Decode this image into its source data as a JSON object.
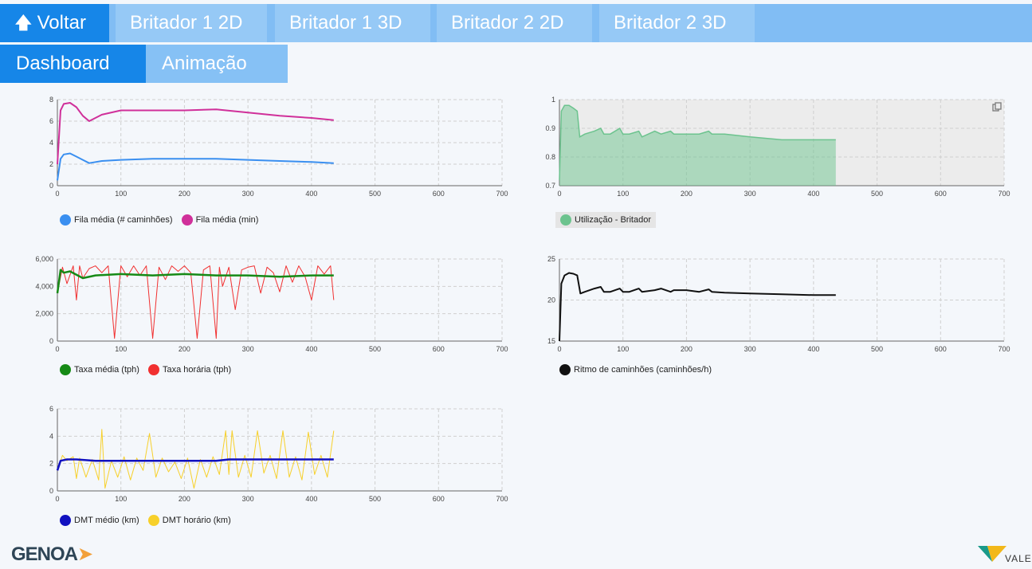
{
  "nav": {
    "back_label": "Voltar",
    "tabs": [
      "Britador 1 2D",
      "Britador 1 3D",
      "Britador 2 2D",
      "Britador 2 3D"
    ]
  },
  "subnav": {
    "dashboard": "Dashboard",
    "animation": "Animação"
  },
  "colors": {
    "nav_bg": "#81bdf4",
    "active": "#1686e8",
    "fila_count": "#3a8ff0",
    "fila_min": "#d0309a",
    "util": "#6cc38e",
    "taxa_media": "#168a16",
    "taxa_horaria": "#f13030",
    "ritmo": "#111111",
    "dmt_medio": "#1111c0",
    "dmt_horario": "#f7d02a"
  },
  "legends": {
    "fila_count": "Fila média (# caminhões)",
    "fila_min": "Fila média (min)",
    "util": "Utilização - Britador",
    "taxa_media": "Taxa média (tph)",
    "taxa_horaria": "Taxa horária (tph)",
    "ritmo": "Ritmo de caminhões (caminhões/h)",
    "dmt_medio": "DMT médio (km)",
    "dmt_horario": "DMT horário (km)"
  },
  "icons": {
    "copy": "copy-icon",
    "back": "up-arrow-icon",
    "genoa": "genoa-logo",
    "vale": "vale-logo"
  },
  "logos": {
    "genoa": "GENOA",
    "vale": "VALE"
  },
  "chart_data": [
    {
      "type": "line",
      "xlim": [
        0,
        700
      ],
      "ylim": [
        0,
        8
      ],
      "xticks": [
        "0",
        "100",
        "200",
        "300",
        "400",
        "500",
        "600",
        "700"
      ],
      "yticks": [
        "0",
        "2",
        "4",
        "6",
        "8"
      ],
      "series": [
        {
          "name": "Fila média (# caminhões)",
          "x": [
            0,
            5,
            10,
            20,
            30,
            40,
            50,
            70,
            100,
            150,
            200,
            250,
            300,
            350,
            400,
            435
          ],
          "y": [
            0.5,
            2.5,
            2.9,
            3.0,
            2.7,
            2.4,
            2.1,
            2.3,
            2.4,
            2.5,
            2.5,
            2.5,
            2.4,
            2.3,
            2.2,
            2.1
          ]
        },
        {
          "name": "Fila média (min)",
          "x": [
            0,
            5,
            10,
            20,
            30,
            40,
            50,
            70,
            100,
            150,
            200,
            250,
            300,
            350,
            400,
            435
          ],
          "y": [
            2.0,
            7.0,
            7.6,
            7.7,
            7.3,
            6.5,
            6.0,
            6.6,
            7.0,
            7.0,
            7.0,
            7.1,
            6.8,
            6.5,
            6.3,
            6.1
          ]
        }
      ]
    },
    {
      "type": "area",
      "xlim": [
        0,
        700
      ],
      "ylim": [
        0.7,
        1.0
      ],
      "xticks": [
        "0",
        "100",
        "200",
        "300",
        "400",
        "500",
        "600",
        "700"
      ],
      "yticks": [
        "0.7",
        "0.8",
        "0.9",
        "1"
      ],
      "series": [
        {
          "name": "Utilização - Britador",
          "x": [
            0,
            3,
            8,
            15,
            22,
            28,
            32,
            40,
            55,
            65,
            70,
            80,
            95,
            100,
            110,
            125,
            130,
            140,
            150,
            160,
            175,
            180,
            200,
            220,
            235,
            240,
            260,
            300,
            350,
            400,
            435
          ],
          "y": [
            0.72,
            0.96,
            0.98,
            0.98,
            0.97,
            0.96,
            0.87,
            0.88,
            0.89,
            0.9,
            0.88,
            0.88,
            0.9,
            0.88,
            0.88,
            0.89,
            0.87,
            0.88,
            0.89,
            0.88,
            0.89,
            0.88,
            0.88,
            0.88,
            0.89,
            0.88,
            0.88,
            0.87,
            0.86,
            0.86,
            0.86
          ]
        }
      ]
    },
    {
      "type": "line",
      "xlim": [
        0,
        700
      ],
      "ylim": [
        0,
        6000
      ],
      "xticks": [
        "0",
        "100",
        "200",
        "300",
        "400",
        "500",
        "600",
        "700"
      ],
      "yticks": [
        "0",
        "2,000",
        "4,000",
        "6,000"
      ],
      "series": [
        {
          "name": "Taxa média (tph)",
          "x": [
            0,
            5,
            10,
            20,
            40,
            60,
            100,
            150,
            200,
            250,
            300,
            350,
            400,
            435
          ],
          "y": [
            3500,
            5200,
            5000,
            5100,
            4600,
            4800,
            4900,
            4800,
            4900,
            4800,
            4800,
            4700,
            4800,
            4800
          ]
        },
        {
          "name": "Taxa horária (tph)",
          "x": [
            0,
            8,
            15,
            25,
            30,
            35,
            40,
            50,
            60,
            70,
            80,
            90,
            100,
            110,
            120,
            130,
            140,
            150,
            160,
            170,
            180,
            190,
            200,
            210,
            220,
            230,
            240,
            250,
            255,
            260,
            270,
            280,
            290,
            300,
            310,
            320,
            330,
            340,
            350,
            360,
            370,
            380,
            390,
            400,
            410,
            420,
            430,
            435
          ],
          "y": [
            3500,
            5400,
            4200,
            5500,
            3000,
            5500,
            4600,
            5300,
            5500,
            5000,
            5500,
            200,
            5500,
            4700,
            5500,
            4800,
            5500,
            200,
            5400,
            4500,
            5500,
            5100,
            5500,
            5000,
            200,
            5200,
            5500,
            200,
            5400,
            4000,
            5400,
            2300,
            5200,
            5400,
            5500,
            3500,
            5400,
            5000,
            3600,
            5500,
            4300,
            5500,
            4700,
            3000,
            5500,
            4900,
            5500,
            3000
          ]
        }
      ]
    },
    {
      "type": "line",
      "xlim": [
        0,
        700
      ],
      "ylim": [
        15,
        25
      ],
      "xticks": [
        "0",
        "100",
        "200",
        "300",
        "400",
        "500",
        "600",
        "700"
      ],
      "yticks": [
        "15",
        "20",
        "25"
      ],
      "series": [
        {
          "name": "Ritmo de caminhões (caminhões/h)",
          "x": [
            0,
            3,
            8,
            15,
            22,
            28,
            33,
            40,
            55,
            65,
            70,
            80,
            95,
            100,
            110,
            125,
            130,
            150,
            160,
            175,
            180,
            200,
            220,
            235,
            240,
            260,
            300,
            350,
            400,
            435
          ],
          "y": [
            15,
            22,
            23,
            23.3,
            23.2,
            23,
            20.8,
            21,
            21.4,
            21.6,
            21,
            21,
            21.4,
            21,
            21,
            21.4,
            21,
            21.2,
            21.4,
            21,
            21.2,
            21.2,
            21,
            21.3,
            21,
            20.9,
            20.8,
            20.7,
            20.6,
            20.6
          ]
        }
      ]
    },
    {
      "type": "line",
      "xlim": [
        0,
        700
      ],
      "ylim": [
        0,
        6
      ],
      "xticks": [
        "0",
        "100",
        "200",
        "300",
        "400",
        "500",
        "600",
        "700"
      ],
      "yticks": [
        "0",
        "2",
        "4",
        "6"
      ],
      "series": [
        {
          "name": "DMT médio (km)",
          "x": [
            0,
            5,
            15,
            30,
            60,
            100,
            150,
            200,
            250,
            270,
            280,
            300,
            350,
            400,
            435
          ],
          "y": [
            1.5,
            2.2,
            2.3,
            2.3,
            2.2,
            2.2,
            2.2,
            2.2,
            2.2,
            2.3,
            2.3,
            2.3,
            2.3,
            2.3,
            2.3
          ]
        },
        {
          "name": "DMT horário (km)",
          "x": [
            0,
            8,
            15,
            25,
            30,
            35,
            45,
            55,
            65,
            70,
            75,
            85,
            95,
            105,
            115,
            125,
            135,
            145,
            155,
            165,
            175,
            185,
            195,
            205,
            215,
            225,
            235,
            245,
            255,
            265,
            270,
            275,
            285,
            295,
            305,
            315,
            325,
            335,
            345,
            355,
            365,
            375,
            385,
            395,
            405,
            415,
            425,
            435
          ],
          "y": [
            1.5,
            2.6,
            2.2,
            2.5,
            0.9,
            2.4,
            1.0,
            2.3,
            0.8,
            4.5,
            0.2,
            2.2,
            1.0,
            2.5,
            0.8,
            2.4,
            1.5,
            4.2,
            1.0,
            2.4,
            1.4,
            2.1,
            0.9,
            2.4,
            0.2,
            2.3,
            1.0,
            2.5,
            1.2,
            4.4,
            1.2,
            4.4,
            1.0,
            2.6,
            1.0,
            4.4,
            1.3,
            2.6,
            0.9,
            4.4,
            1.0,
            2.5,
            0.8,
            4.3,
            1.2,
            2.6,
            1.0,
            4.4
          ]
        }
      ]
    }
  ]
}
